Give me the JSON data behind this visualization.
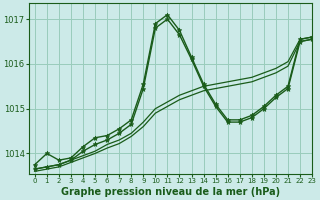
{
  "bg_color": "#cceae8",
  "grid_color": "#99ccbb",
  "line_color": "#1a5c1a",
  "marker_color": "#1a5c1a",
  "xlabel": "Graphe pression niveau de la mer (hPa)",
  "xlabel_fontsize": 7,
  "xlim": [
    -0.5,
    23
  ],
  "ylim": [
    1013.55,
    1017.35
  ],
  "yticks": [
    1014,
    1015,
    1016,
    1017
  ],
  "xticks": [
    0,
    1,
    2,
    3,
    4,
    5,
    6,
    7,
    8,
    9,
    10,
    11,
    12,
    13,
    14,
    15,
    16,
    17,
    18,
    19,
    20,
    21,
    22,
    23
  ],
  "series": [
    {
      "y": [
        1013.75,
        1014.0,
        1013.85,
        1013.9,
        1014.15,
        1014.35,
        1014.4,
        1014.55,
        1014.75,
        1015.55,
        1016.9,
        1017.1,
        1016.75,
        1016.15,
        1015.55,
        1015.1,
        1014.75,
        1014.75,
        1014.85,
        1015.05,
        1015.3,
        1015.5,
        1016.55,
        1016.6
      ],
      "marker": "*",
      "ms": 3.5,
      "lw": 1.0,
      "ls": "-"
    },
    {
      "y": [
        1013.65,
        1013.7,
        1013.75,
        1013.85,
        1013.95,
        1014.05,
        1014.2,
        1014.3,
        1014.45,
        1014.7,
        1015.0,
        1015.15,
        1015.3,
        1015.4,
        1015.5,
        1015.55,
        1015.6,
        1015.65,
        1015.7,
        1015.8,
        1015.9,
        1016.05,
        1016.55,
        1016.6
      ],
      "marker": null,
      "ms": 0,
      "lw": 0.9,
      "ls": "-"
    },
    {
      "y": [
        1013.6,
        1013.65,
        1013.7,
        1013.8,
        1013.9,
        1014.0,
        1014.12,
        1014.22,
        1014.38,
        1014.6,
        1014.9,
        1015.05,
        1015.2,
        1015.3,
        1015.4,
        1015.45,
        1015.5,
        1015.55,
        1015.6,
        1015.7,
        1015.8,
        1015.95,
        1016.5,
        1016.55
      ],
      "marker": null,
      "ms": 0,
      "lw": 0.9,
      "ls": "-"
    },
    {
      "y": [
        1013.65,
        1013.7,
        1013.75,
        1013.85,
        1014.05,
        1014.2,
        1014.3,
        1014.45,
        1014.65,
        1015.45,
        1016.8,
        1017.0,
        1016.65,
        1016.1,
        1015.5,
        1015.05,
        1014.7,
        1014.7,
        1014.8,
        1015.0,
        1015.25,
        1015.45,
        1016.5,
        1016.55
      ],
      "marker": "*",
      "ms": 3.5,
      "lw": 1.0,
      "ls": "-"
    }
  ]
}
